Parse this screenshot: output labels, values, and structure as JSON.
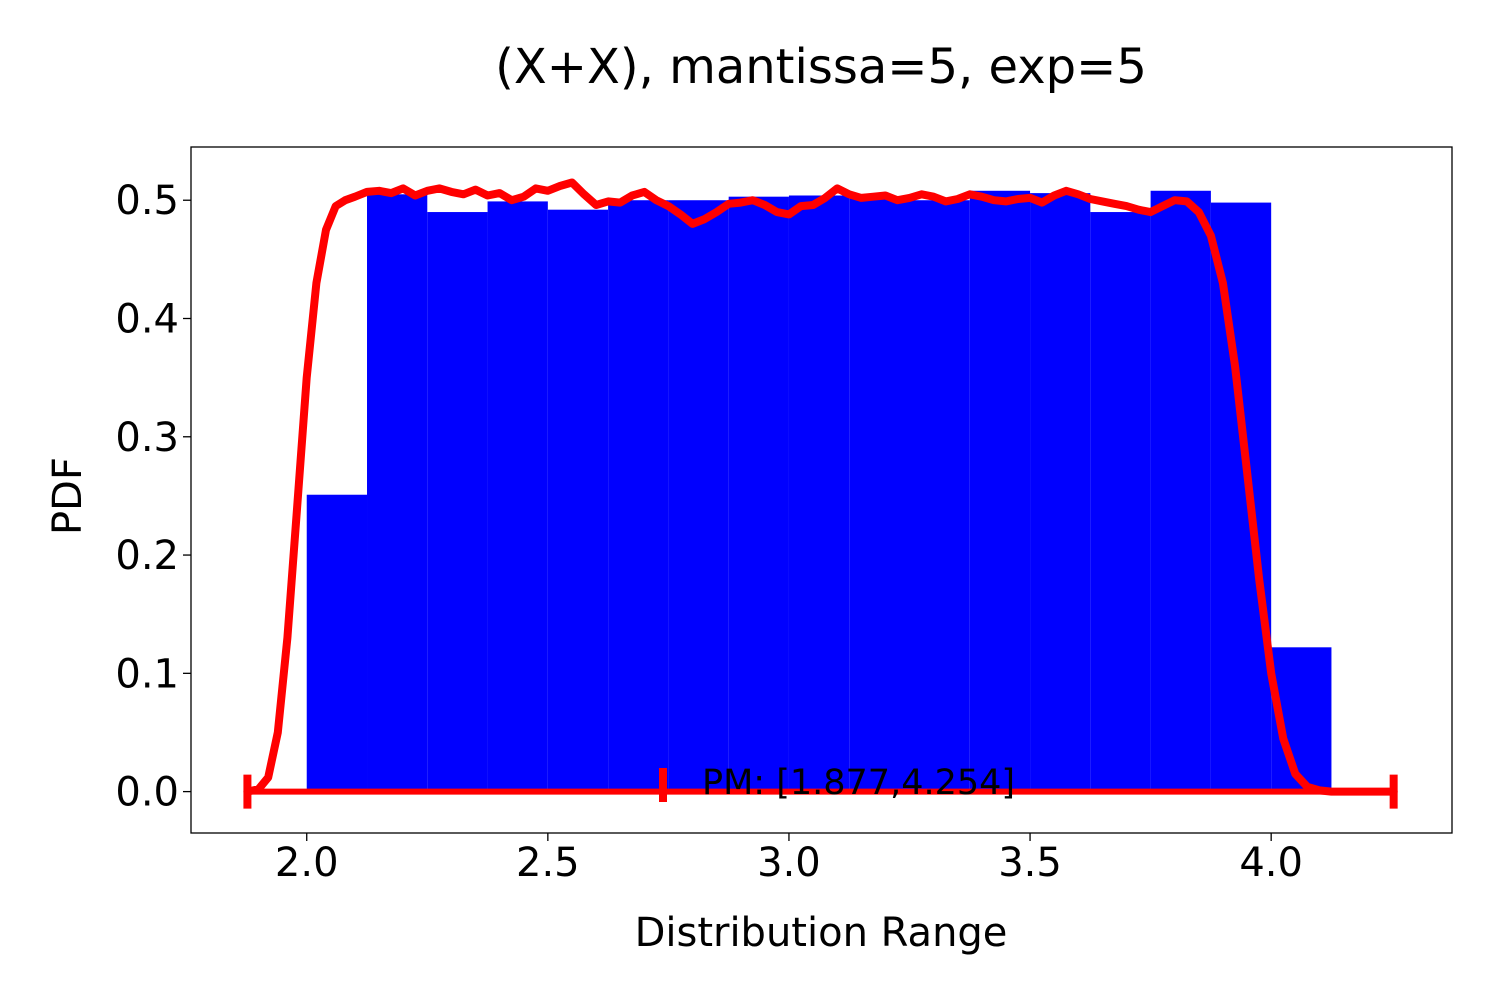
{
  "chart_data": {
    "type": "bar",
    "title": "(X+X), mantissa=5, exp=5",
    "xlabel": "Distribution Range",
    "ylabel": "PDF",
    "xlim": [
      1.76,
      4.375
    ],
    "ylim": [
      -0.035,
      0.545
    ],
    "grid": false,
    "xticks": [
      2.0,
      2.5,
      3.0,
      3.5,
      4.0
    ],
    "xtick_labels": [
      "2.0",
      "2.5",
      "3.0",
      "3.5",
      "4.0"
    ],
    "yticks": [
      0.0,
      0.1,
      0.2,
      0.3,
      0.4,
      0.5
    ],
    "ytick_labels": [
      "0.0",
      "0.1",
      "0.2",
      "0.3",
      "0.4",
      "0.5"
    ],
    "colors": {
      "histogram": "#0000ff",
      "pdf_line": "#ff0000",
      "range_marker": "#ff0000"
    },
    "histogram": {
      "bin_edges": [
        2.0,
        2.125,
        2.25,
        2.375,
        2.5,
        2.625,
        2.75,
        2.875,
        3.0,
        3.125,
        3.25,
        3.375,
        3.5,
        3.625,
        3.75,
        3.875,
        4.0,
        4.125,
        4.25
      ],
      "values": [
        0.251,
        0.505,
        0.49,
        0.499,
        0.492,
        0.5,
        0.5,
        0.503,
        0.504,
        0.503,
        0.5,
        0.508,
        0.506,
        0.49,
        0.508,
        0.498,
        0.122,
        0.0
      ]
    },
    "series": [
      {
        "type": "line",
        "x": [
          1.877,
          1.9,
          1.92,
          1.94,
          1.96,
          1.98,
          2.0,
          2.02,
          2.04,
          2.06,
          2.08,
          2.1,
          2.125,
          2.15,
          2.175,
          2.2,
          2.225,
          2.25,
          2.275,
          2.3,
          2.325,
          2.35,
          2.375,
          2.4,
          2.425,
          2.45,
          2.475,
          2.5,
          2.525,
          2.55,
          2.575,
          2.6,
          2.625,
          2.65,
          2.675,
          2.7,
          2.725,
          2.75,
          2.775,
          2.8,
          2.825,
          2.85,
          2.875,
          2.9,
          2.925,
          2.95,
          2.975,
          3.0,
          3.025,
          3.05,
          3.075,
          3.1,
          3.125,
          3.15,
          3.175,
          3.2,
          3.225,
          3.25,
          3.275,
          3.3,
          3.325,
          3.35,
          3.375,
          3.4,
          3.425,
          3.45,
          3.475,
          3.5,
          3.525,
          3.55,
          3.575,
          3.6,
          3.625,
          3.65,
          3.675,
          3.7,
          3.725,
          3.75,
          3.775,
          3.8,
          3.825,
          3.85,
          3.875,
          3.9,
          3.925,
          3.95,
          3.975,
          4.0,
          4.025,
          4.05,
          4.075,
          4.1,
          4.125,
          4.15,
          4.175,
          4.2,
          4.225,
          4.254
        ],
        "y": [
          0.0,
          0.002,
          0.012,
          0.05,
          0.13,
          0.24,
          0.35,
          0.43,
          0.475,
          0.495,
          0.5,
          0.503,
          0.507,
          0.508,
          0.506,
          0.51,
          0.504,
          0.508,
          0.51,
          0.507,
          0.505,
          0.509,
          0.504,
          0.506,
          0.5,
          0.503,
          0.51,
          0.508,
          0.512,
          0.515,
          0.505,
          0.496,
          0.499,
          0.498,
          0.504,
          0.507,
          0.5,
          0.495,
          0.488,
          0.48,
          0.484,
          0.49,
          0.497,
          0.498,
          0.5,
          0.496,
          0.49,
          0.488,
          0.495,
          0.496,
          0.502,
          0.51,
          0.505,
          0.502,
          0.503,
          0.504,
          0.5,
          0.502,
          0.505,
          0.503,
          0.499,
          0.501,
          0.505,
          0.503,
          0.5,
          0.499,
          0.501,
          0.502,
          0.498,
          0.504,
          0.508,
          0.505,
          0.501,
          0.499,
          0.497,
          0.495,
          0.492,
          0.49,
          0.495,
          0.5,
          0.499,
          0.49,
          0.47,
          0.43,
          0.36,
          0.27,
          0.18,
          0.1,
          0.045,
          0.015,
          0.004,
          0.001,
          0.0,
          0.0,
          0.0,
          0.0,
          0.0,
          0.0
        ]
      }
    ],
    "range_marker": {
      "label": "PM: [1.877,4.254]",
      "range": [
        1.877,
        4.254
      ],
      "y": 0.0
    }
  }
}
